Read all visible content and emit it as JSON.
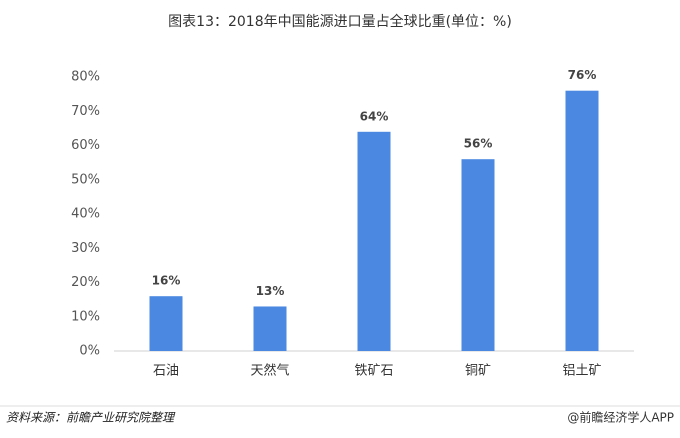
{
  "chart_data": {
    "type": "bar",
    "title": "图表13：2018年中国能源进口量占全球比重(单位：%)",
    "categories": [
      "石油",
      "天然气",
      "铁矿石",
      "铜矿",
      "铝土矿"
    ],
    "values": [
      16,
      13,
      64,
      56,
      76
    ],
    "value_labels": [
      "16%",
      "13%",
      "64%",
      "56%",
      "76%"
    ],
    "color": "#4a88e2",
    "ylim": [
      0,
      80
    ],
    "yticks": [
      {
        "value": 0,
        "label": "0%"
      },
      {
        "value": 10,
        "label": "10%"
      },
      {
        "value": 20,
        "label": "20%"
      },
      {
        "value": 30,
        "label": "30%"
      },
      {
        "value": 40,
        "label": "40%"
      },
      {
        "value": 50,
        "label": "50%"
      },
      {
        "value": 60,
        "label": "60%"
      },
      {
        "value": 70,
        "label": "70%"
      },
      {
        "value": 80,
        "label": "80%"
      }
    ],
    "grid": false,
    "source": "资料来源：前瞻产业研究院整理",
    "credit": "@前瞻经济学人APP"
  }
}
